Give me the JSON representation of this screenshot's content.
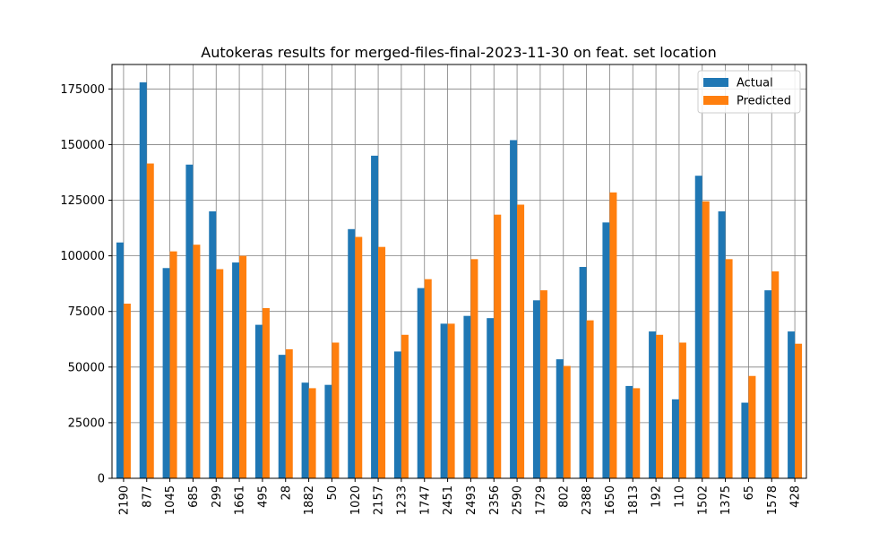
{
  "chart_data": {
    "type": "bar",
    "title": "Autokeras results for merged-files-final-2023-11-30 on feat. set location",
    "xlabel": "",
    "ylabel": "",
    "ylim": [
      0,
      186000
    ],
    "yticks": [
      0,
      25000,
      50000,
      75000,
      100000,
      125000,
      150000,
      175000
    ],
    "grid": true,
    "legend_position": "top-right",
    "categories": [
      "2190",
      "877",
      "1045",
      "685",
      "299",
      "1661",
      "495",
      "28",
      "1882",
      "50",
      "1020",
      "2157",
      "1233",
      "1747",
      "2451",
      "2493",
      "2356",
      "2590",
      "1729",
      "802",
      "2388",
      "1650",
      "1813",
      "192",
      "110",
      "1502",
      "1375",
      "65",
      "1578",
      "428"
    ],
    "series": [
      {
        "name": "Actual",
        "color": "#1f77b4",
        "values": [
          106000,
          178000,
          94500,
          141000,
          120000,
          97000,
          69000,
          55500,
          43000,
          42000,
          112000,
          145000,
          57000,
          85500,
          69500,
          73000,
          72000,
          152000,
          80000,
          53500,
          95000,
          115000,
          41500,
          66000,
          35500,
          136000,
          120000,
          34000,
          84500,
          66000
        ]
      },
      {
        "name": "Predicted",
        "color": "#ff7f0e",
        "values": [
          78500,
          141500,
          102000,
          105000,
          94000,
          100000,
          76500,
          58000,
          40500,
          61000,
          108500,
          104000,
          64500,
          89500,
          69500,
          98500,
          118500,
          123000,
          84500,
          50500,
          71000,
          128500,
          40500,
          64500,
          61000,
          124500,
          98500,
          46000,
          93000,
          60500
        ]
      }
    ]
  }
}
